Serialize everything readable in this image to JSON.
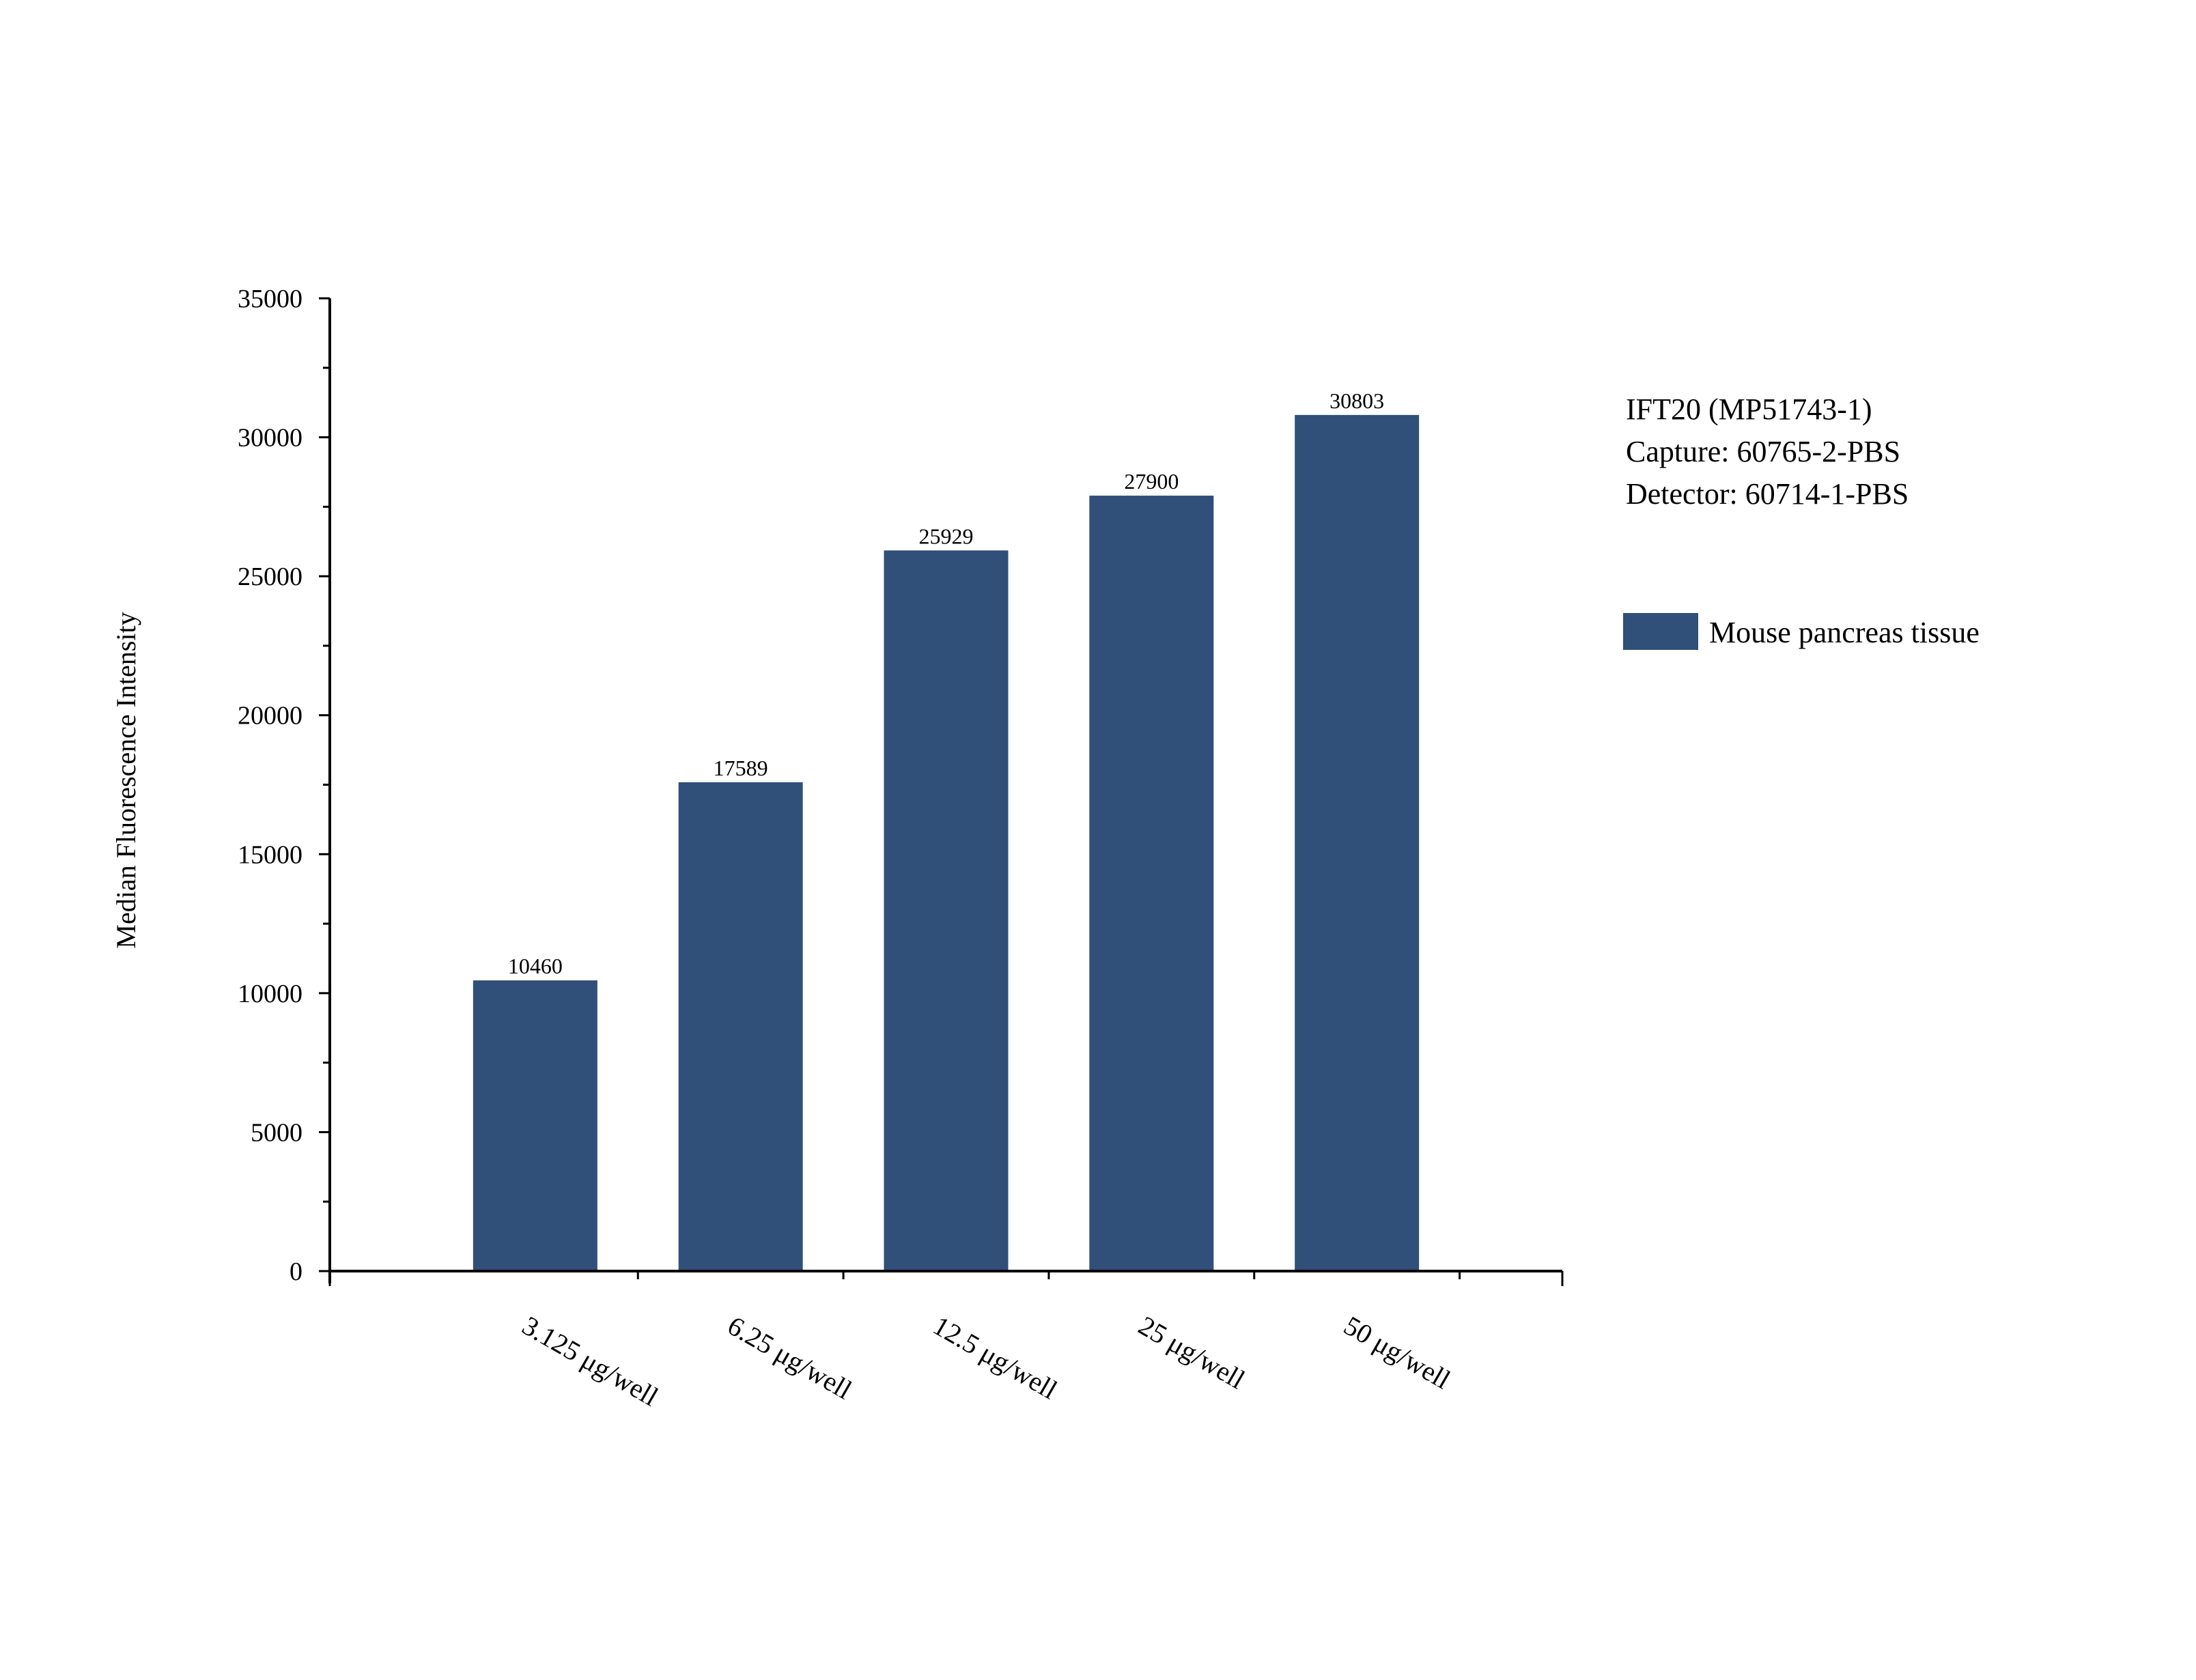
{
  "chart_data": {
    "type": "bar",
    "title": "",
    "xlabel": "",
    "ylabel": "Median Fluorescence Intensity",
    "categories": [
      "3.125 μg/well",
      "6.25 μg/well",
      "12.5 μg/well",
      "25 μg/well",
      "50 μg/well"
    ],
    "series": [
      {
        "name": "Mouse pancreas tissue",
        "values": [
          10460,
          17589,
          25929,
          27900,
          30803
        ],
        "color": "#304F79"
      }
    ],
    "data_labels": [
      "10460",
      "17589",
      "25929",
      "27900",
      "30803"
    ],
    "ylim": [
      0,
      35000
    ],
    "yticks": [
      0,
      5000,
      10000,
      15000,
      20000,
      25000,
      30000,
      35000
    ],
    "grid": false,
    "legend_position": "right"
  },
  "annotation": {
    "lines": [
      "IFT20 (MP51743-1)",
      "Capture: 60765-2-PBS",
      "Detector: 60714-1-PBS"
    ]
  }
}
